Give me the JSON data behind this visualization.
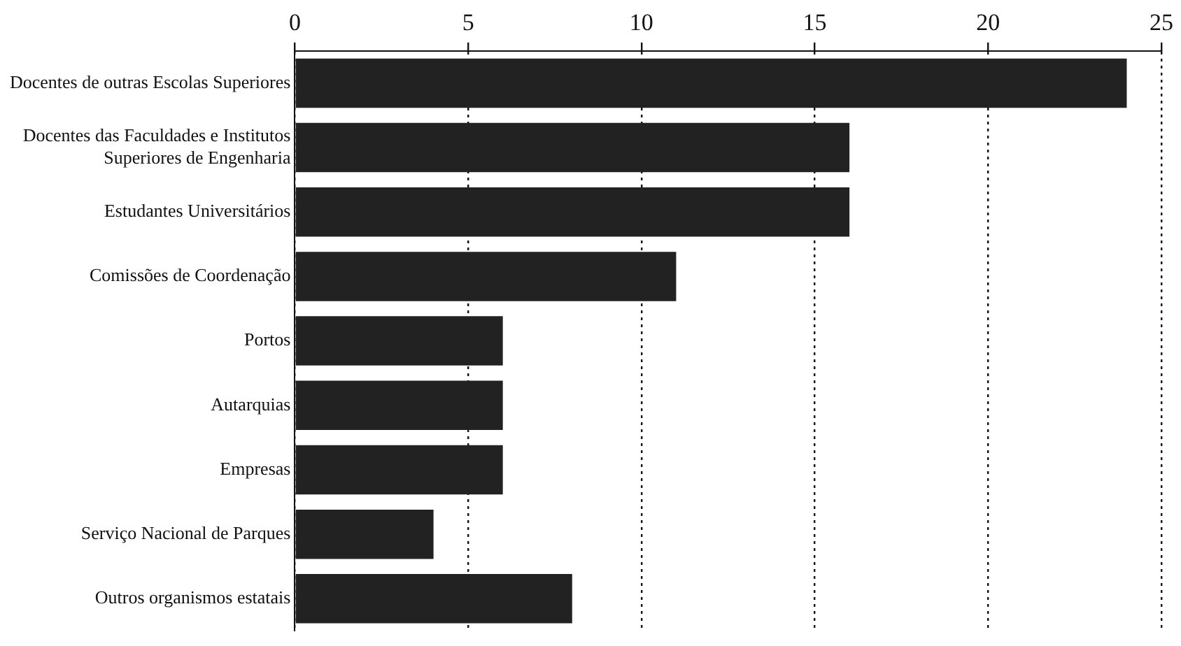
{
  "chart_data": {
    "type": "bar",
    "orientation": "horizontal",
    "categories": [
      "Docentes de outras Escolas Superiores",
      "Docentes das Faculdades e Institutos Superiores de Engenharia",
      "Estudantes Universitários",
      "Comissões de Coordenação",
      "Portos",
      "Autarquias",
      "Empresas",
      "Serviço Nacional de Parques",
      "Outros organismos estatais"
    ],
    "values": [
      24,
      16,
      16,
      11,
      6,
      6,
      6,
      4,
      8
    ],
    "color": "#222222",
    "xlim": [
      0,
      25
    ],
    "xticks": [
      0,
      5,
      10,
      15,
      20,
      25
    ],
    "grid": "x",
    "legend": false
  }
}
